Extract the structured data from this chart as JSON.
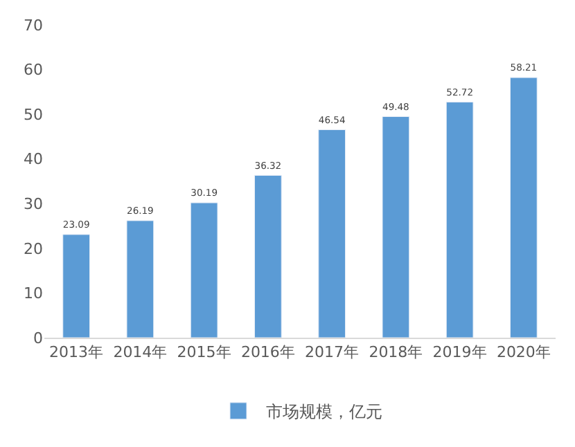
{
  "chart_data": {
    "type": "bar",
    "categories": [
      "2013年",
      "2014年",
      "2015年",
      "2016年",
      "2017年",
      "2018年",
      "2019年",
      "2020年"
    ],
    "series": [
      {
        "name": "市场规模，亿元",
        "color": "#5b9bd5",
        "values": [
          23.09,
          26.19,
          30.19,
          36.32,
          46.54,
          49.48,
          52.72,
          58.21
        ]
      }
    ],
    "ylim": [
      0,
      70
    ],
    "yticks": [
      0,
      10,
      20,
      30,
      40,
      50,
      60,
      70
    ],
    "data_labels": true,
    "grid": false,
    "legend": "bottom"
  }
}
